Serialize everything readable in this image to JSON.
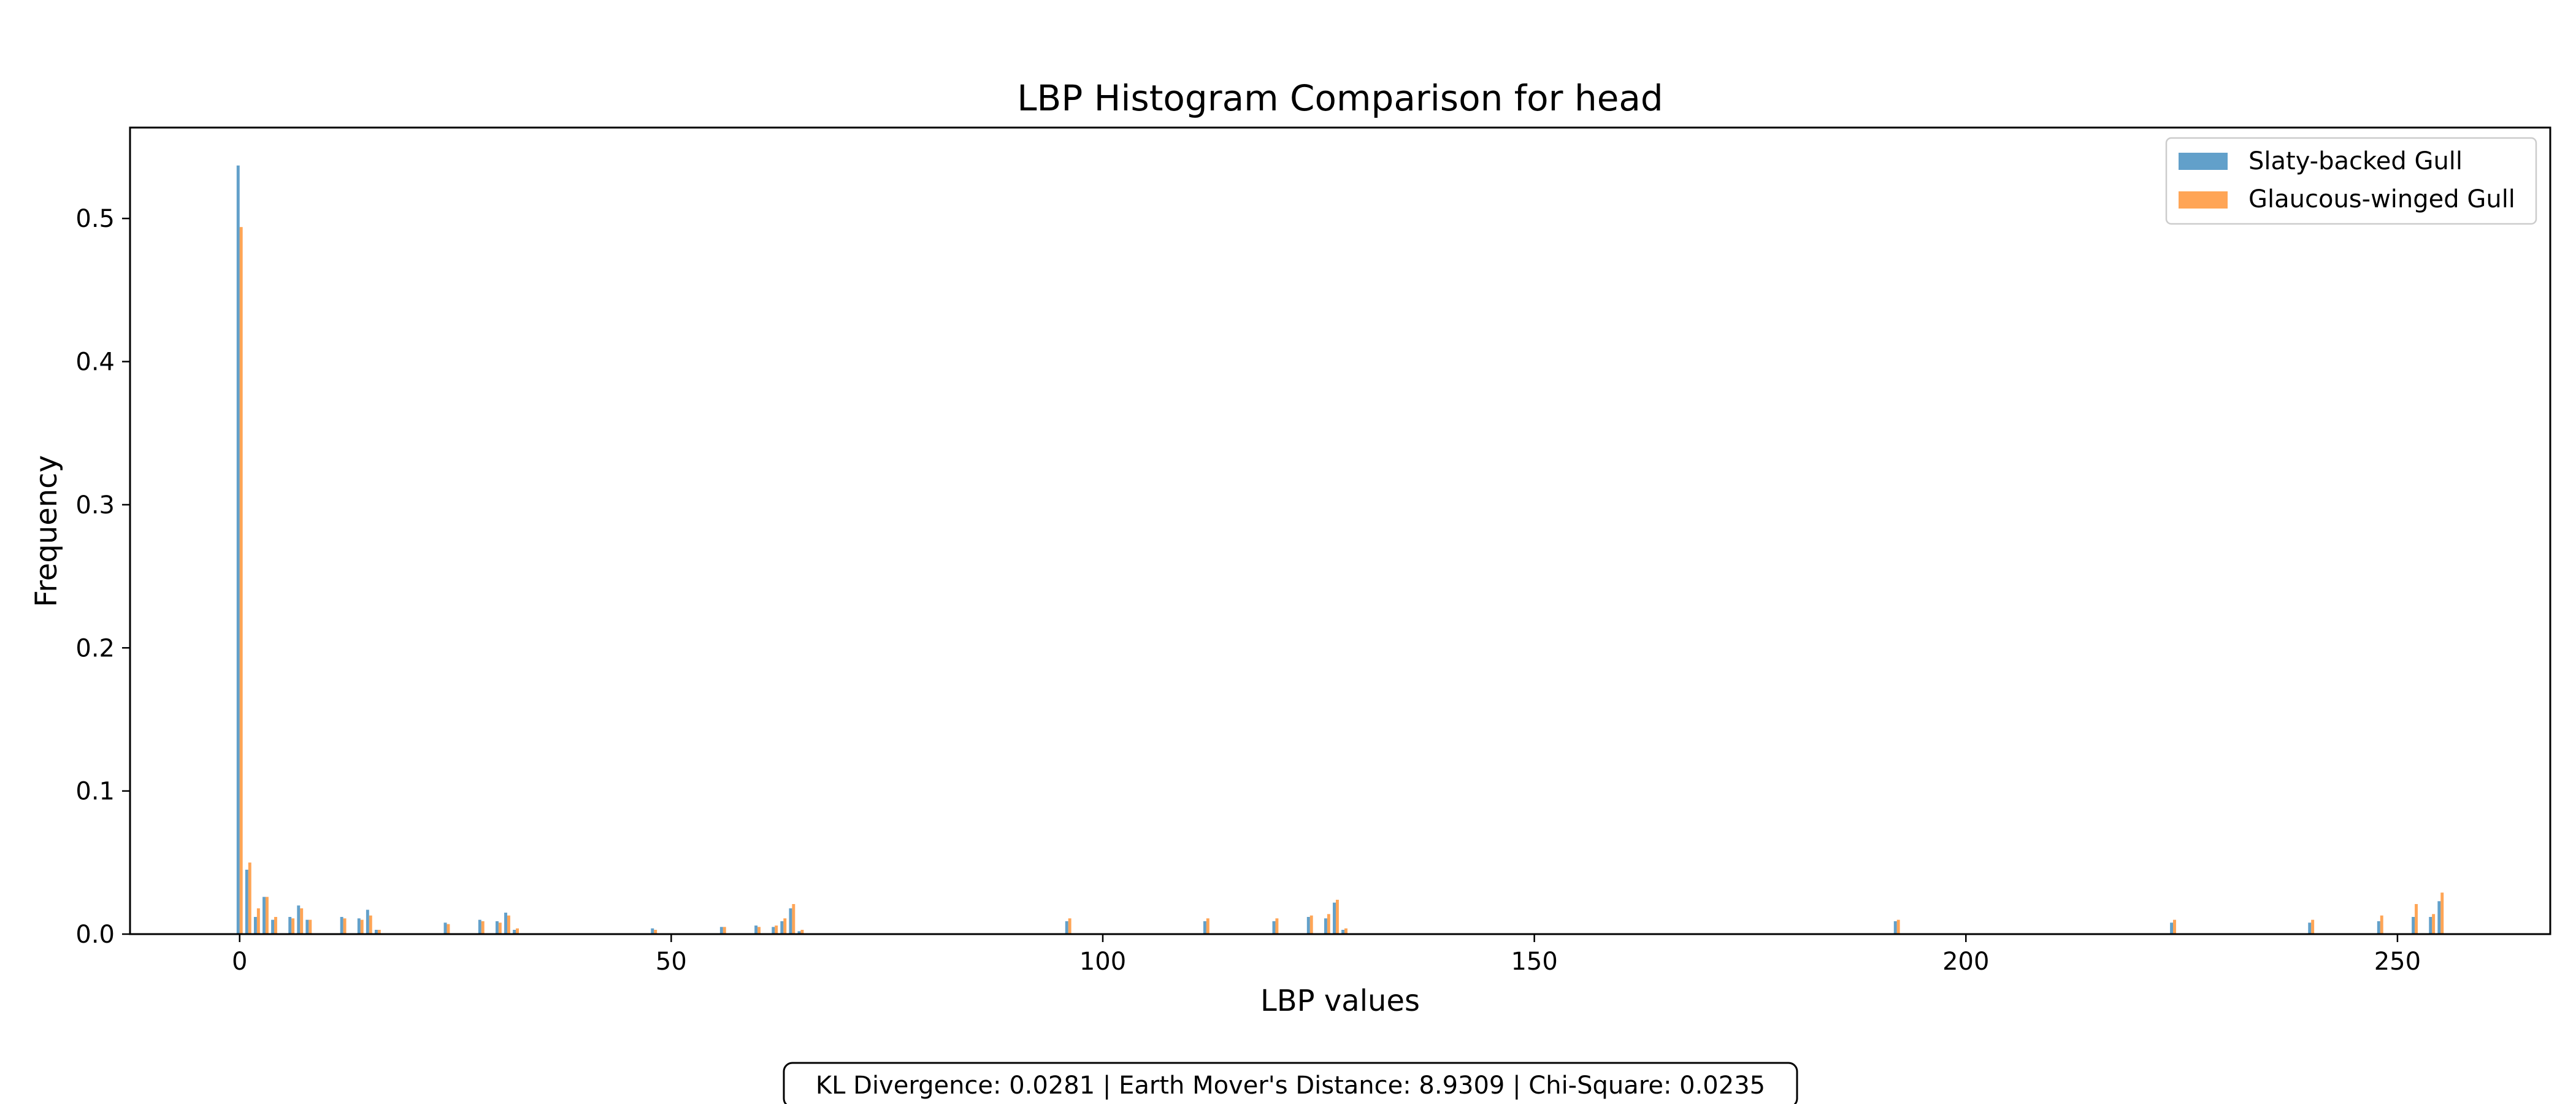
{
  "chart_data": {
    "type": "bar",
    "title": "LBP Histogram Comparison for head",
    "xlabel": "LBP values",
    "ylabel": "Frequency",
    "xlim": [
      -12.7,
      267.7
    ],
    "ylim": [
      0,
      0.5635
    ],
    "xticks": [
      0,
      50,
      100,
      150,
      200,
      250
    ],
    "yticks": [
      0.0,
      0.1,
      0.2,
      0.3,
      0.4,
      0.5
    ],
    "grid": false,
    "legend_position": "top-right",
    "series": [
      {
        "name": "Slaty-backed Gull",
        "color": "#1f77b4",
        "points": [
          [
            0,
            0.537
          ],
          [
            1,
            0.045
          ],
          [
            2,
            0.012
          ],
          [
            3,
            0.026
          ],
          [
            4,
            0.01
          ],
          [
            6,
            0.012
          ],
          [
            7,
            0.02
          ],
          [
            8,
            0.01
          ],
          [
            12,
            0.012
          ],
          [
            14,
            0.011
          ],
          [
            15,
            0.017
          ],
          [
            16,
            0.003
          ],
          [
            24,
            0.008
          ],
          [
            28,
            0.01
          ],
          [
            30,
            0.009
          ],
          [
            31,
            0.015
          ],
          [
            32,
            0.003
          ],
          [
            48,
            0.004
          ],
          [
            56,
            0.005
          ],
          [
            60,
            0.006
          ],
          [
            62,
            0.005
          ],
          [
            63,
            0.009
          ],
          [
            64,
            0.018
          ],
          [
            65,
            0.002
          ],
          [
            96,
            0.009
          ],
          [
            112,
            0.009
          ],
          [
            120,
            0.009
          ],
          [
            124,
            0.012
          ],
          [
            126,
            0.011
          ],
          [
            127,
            0.022
          ],
          [
            128,
            0.003
          ],
          [
            192,
            0.009
          ],
          [
            224,
            0.008
          ],
          [
            240,
            0.008
          ],
          [
            248,
            0.009
          ],
          [
            252,
            0.012
          ],
          [
            254,
            0.012
          ],
          [
            255,
            0.023
          ]
        ]
      },
      {
        "name": "Glaucous-winged Gull",
        "color": "#ff7f0e",
        "points": [
          [
            0,
            0.494
          ],
          [
            1,
            0.05
          ],
          [
            2,
            0.018
          ],
          [
            3,
            0.026
          ],
          [
            4,
            0.012
          ],
          [
            6,
            0.011
          ],
          [
            7,
            0.018
          ],
          [
            8,
            0.01
          ],
          [
            12,
            0.011
          ],
          [
            14,
            0.01
          ],
          [
            15,
            0.013
          ],
          [
            16,
            0.003
          ],
          [
            24,
            0.007
          ],
          [
            28,
            0.009
          ],
          [
            30,
            0.008
          ],
          [
            31,
            0.013
          ],
          [
            32,
            0.004
          ],
          [
            48,
            0.003
          ],
          [
            56,
            0.005
          ],
          [
            60,
            0.005
          ],
          [
            62,
            0.006
          ],
          [
            63,
            0.011
          ],
          [
            64,
            0.021
          ],
          [
            65,
            0.003
          ],
          [
            96,
            0.011
          ],
          [
            112,
            0.011
          ],
          [
            120,
            0.011
          ],
          [
            124,
            0.013
          ],
          [
            126,
            0.014
          ],
          [
            127,
            0.024
          ],
          [
            128,
            0.004
          ],
          [
            192,
            0.01
          ],
          [
            224,
            0.01
          ],
          [
            240,
            0.01
          ],
          [
            248,
            0.013
          ],
          [
            252,
            0.021
          ],
          [
            254,
            0.014
          ],
          [
            255,
            0.029
          ]
        ]
      }
    ]
  },
  "metrics_text": "KL Divergence: 0.0281 | Earth Mover's Distance: 8.9309 | Chi-Square: 0.0235"
}
